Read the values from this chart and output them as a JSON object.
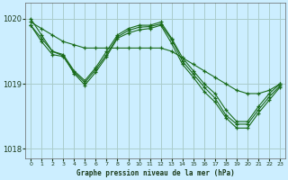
{
  "title": "Graphe pression niveau de la mer (hPa)",
  "bg_color": "#cceeff",
  "grid_color": "#aacccc",
  "line_color": "#1a6b1a",
  "xlim": [
    -0.5,
    23.5
  ],
  "ylim": [
    1017.85,
    1020.25
  ],
  "yticks": [
    1018,
    1019,
    1020
  ],
  "xticks": [
    0,
    1,
    2,
    3,
    4,
    5,
    6,
    7,
    8,
    9,
    10,
    11,
    12,
    13,
    14,
    15,
    16,
    17,
    18,
    19,
    20,
    21,
    22,
    23
  ],
  "series": [
    {
      "x": [
        0,
        1,
        2,
        3,
        4,
        5,
        6,
        7,
        8,
        9,
        10,
        11,
        12,
        13,
        14,
        15,
        16,
        17,
        18,
        19,
        20,
        21,
        22,
        23
      ],
      "y": [
        1019.95,
        1019.85,
        1019.75,
        1019.65,
        1019.6,
        1019.55,
        1019.55,
        1019.55,
        1019.55,
        1019.55,
        1019.55,
        1019.55,
        1019.55,
        1019.5,
        1019.4,
        1019.3,
        1019.2,
        1019.1,
        1019.0,
        1018.9,
        1018.85,
        1018.85,
        1018.9,
        1019.0
      ]
    },
    {
      "x": [
        0,
        1,
        2,
        3,
        4,
        5,
        6,
        7,
        8,
        9,
        10,
        11,
        12,
        13,
        14,
        15,
        16,
        17,
        18,
        19,
        20,
        21,
        22,
        23
      ],
      "y": [
        1019.9,
        1019.7,
        1019.5,
        1019.45,
        1019.2,
        1019.05,
        1019.25,
        1019.5,
        1019.75,
        1019.85,
        1019.9,
        1019.9,
        1019.95,
        1019.7,
        1019.4,
        1019.2,
        1019.0,
        1018.85,
        1018.6,
        1018.42,
        1018.42,
        1018.65,
        1018.85,
        1019.0
      ]
    },
    {
      "x": [
        0,
        1,
        2,
        3,
        4,
        5,
        6,
        7,
        8,
        9,
        10,
        11,
        12,
        13,
        14,
        15,
        16,
        17,
        18,
        19,
        20,
        21,
        22,
        23
      ],
      "y": [
        1019.9,
        1019.65,
        1019.45,
        1019.42,
        1019.18,
        1019.02,
        1019.22,
        1019.45,
        1019.72,
        1019.82,
        1019.87,
        1019.88,
        1019.92,
        1019.68,
        1019.35,
        1019.15,
        1018.95,
        1018.78,
        1018.52,
        1018.38,
        1018.38,
        1018.6,
        1018.8,
        1018.97
      ]
    },
    {
      "x": [
        0,
        1,
        2,
        3,
        4,
        5,
        6,
        7,
        8,
        9,
        10,
        11,
        12,
        13,
        14,
        15,
        16,
        17,
        18,
        19,
        20,
        21,
        22,
        23
      ],
      "y": [
        1020.0,
        1019.75,
        1019.5,
        1019.43,
        1019.16,
        1018.98,
        1019.18,
        1019.42,
        1019.7,
        1019.78,
        1019.83,
        1019.85,
        1019.9,
        1019.62,
        1019.3,
        1019.1,
        1018.88,
        1018.72,
        1018.48,
        1018.32,
        1018.32,
        1018.55,
        1018.75,
        1018.95
      ]
    }
  ]
}
